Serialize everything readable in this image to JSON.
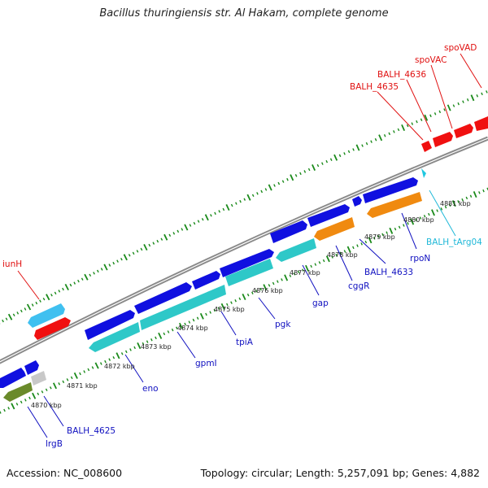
{
  "title": "Bacillus thuringiensis str. Al Hakam, complete genome",
  "footer": {
    "accession": "Accession: NC_008600",
    "summary": "Topology: circular; Length: 5,257,091 bp; Genes: 4,882"
  },
  "colors": {
    "backbone": "#8a8a8a",
    "tick": "#1a8a1a",
    "gene_blue": "#1010e0",
    "gene_cyan": "#2ec8c8",
    "gene_orange": "#f08a10",
    "gene_red": "#f01010",
    "gene_lightblue": "#40c0f0",
    "gene_olive": "#6a8a2a",
    "gene_gray": "#c8c8c8",
    "label_blue": "#1010c0",
    "label_red": "#e01010",
    "label_cyan": "#20b8d8"
  },
  "scale_labels": [
    "4870 kbp",
    "4871 kbp",
    "4872 kbp",
    "4873 kbp",
    "4874 kbp",
    "4875 kbp",
    "4876 kbp",
    "4877 kbp",
    "4878 kbp",
    "4879 kbp",
    "4880 kbp",
    "4881 kbp"
  ],
  "genes": {
    "lrgB": "lrgB",
    "BALH_4625": "BALH_4625",
    "eno": "eno",
    "gpmI": "gpmI",
    "tpiA": "tpiA",
    "pgk": "pgk",
    "gap": "gap",
    "cggR": "cggR",
    "BALH_4633": "BALH_4633",
    "rpoN": "rpoN",
    "BALH_tArg04": "BALH_tArg04",
    "iunH": "iunH",
    "BALH_4635": "BALH_4635",
    "BALH_4636": "BALH_4636",
    "spoVAC": "spoVAC",
    "spoVAD": "spoVAD"
  }
}
